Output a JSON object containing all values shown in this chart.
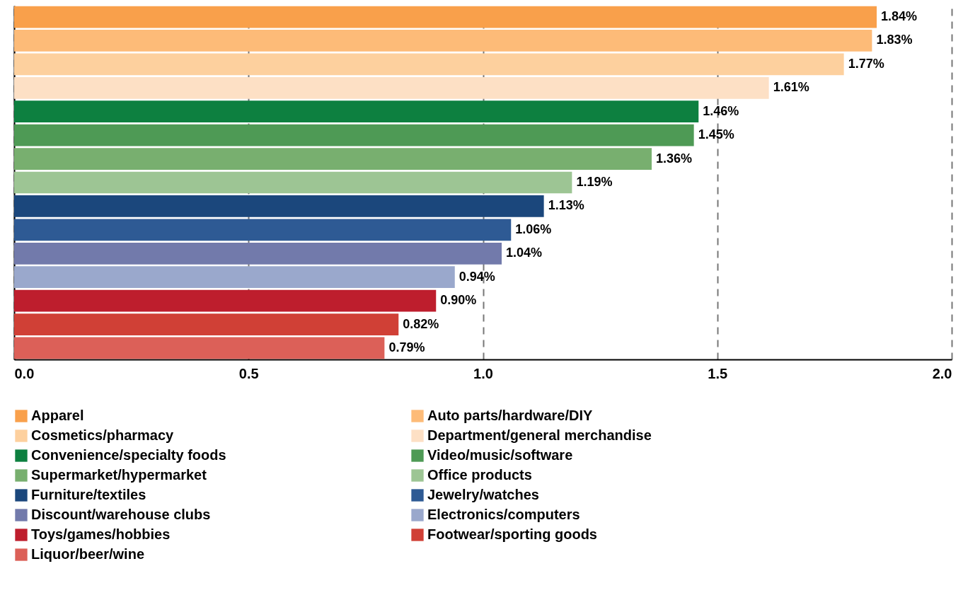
{
  "chart_data": {
    "type": "bar",
    "orientation": "horizontal",
    "categories": [
      null,
      null,
      null,
      null,
      null,
      null,
      null,
      null,
      null,
      null,
      null,
      null,
      null,
      null,
      null
    ],
    "series": [
      {
        "name": "Apparel",
        "color": "#f9a04b",
        "values": [
          1.84,
          null,
          null,
          null,
          null,
          null,
          null,
          null,
          null,
          null,
          null,
          null,
          null,
          null,
          null
        ],
        "value_labels": [
          "1.84%",
          null,
          null,
          null,
          null,
          null,
          null,
          null,
          null,
          null,
          null,
          null,
          null,
          null,
          null
        ]
      },
      {
        "name": "Auto parts/hardware/DIY",
        "color": "#fdbb78",
        "values": [
          null,
          1.83,
          null,
          null,
          null,
          null,
          null,
          null,
          null,
          null,
          null,
          null,
          null,
          null,
          null
        ],
        "value_labels": [
          null,
          "1.83%",
          null,
          null,
          null,
          null,
          null,
          null,
          null,
          null,
          null,
          null,
          null,
          null,
          null
        ]
      },
      {
        "name": "Cosmetics/pharmacy",
        "color": "#fdd09e",
        "values": [
          null,
          null,
          1.77,
          null,
          null,
          null,
          null,
          null,
          null,
          null,
          null,
          null,
          null,
          null,
          null
        ],
        "value_labels": [
          null,
          null,
          "1.77%",
          null,
          null,
          null,
          null,
          null,
          null,
          null,
          null,
          null,
          null,
          null,
          null
        ]
      },
      {
        "name": "Department/general merchandise",
        "color": "#fde0c5",
        "values": [
          null,
          null,
          null,
          1.61,
          null,
          null,
          null,
          null,
          null,
          null,
          null,
          null,
          null,
          null,
          null
        ],
        "value_labels": [
          null,
          null,
          null,
          "1.61%",
          null,
          null,
          null,
          null,
          null,
          null,
          null,
          null,
          null,
          null,
          null
        ]
      },
      {
        "name": "Convenience/specialty foods",
        "color": "#0d8040",
        "values": [
          null,
          null,
          null,
          null,
          1.46,
          null,
          null,
          null,
          null,
          null,
          null,
          null,
          null,
          null,
          null
        ],
        "value_labels": [
          null,
          null,
          null,
          null,
          "1.46%",
          null,
          null,
          null,
          null,
          null,
          null,
          null,
          null,
          null,
          null
        ]
      },
      {
        "name": "Video/music/software",
        "color": "#4e9a55",
        "values": [
          null,
          null,
          null,
          null,
          null,
          1.45,
          null,
          null,
          null,
          null,
          null,
          null,
          null,
          null,
          null
        ],
        "value_labels": [
          null,
          null,
          null,
          null,
          null,
          "1.45%",
          null,
          null,
          null,
          null,
          null,
          null,
          null,
          null,
          null
        ]
      },
      {
        "name": "Supermarket/hypermarket",
        "color": "#78af6f",
        "values": [
          null,
          null,
          null,
          null,
          null,
          null,
          1.36,
          null,
          null,
          null,
          null,
          null,
          null,
          null,
          null
        ],
        "value_labels": [
          null,
          null,
          null,
          null,
          null,
          null,
          "1.36%",
          null,
          null,
          null,
          null,
          null,
          null,
          null,
          null
        ]
      },
      {
        "name": "Office products",
        "color": "#9dc594",
        "values": [
          null,
          null,
          null,
          null,
          null,
          null,
          null,
          1.19,
          null,
          null,
          null,
          null,
          null,
          null,
          null
        ],
        "value_labels": [
          null,
          null,
          null,
          null,
          null,
          null,
          null,
          "1.19%",
          null,
          null,
          null,
          null,
          null,
          null,
          null
        ]
      },
      {
        "name": "Furniture/textiles",
        "color": "#1b477c",
        "values": [
          null,
          null,
          null,
          null,
          null,
          null,
          null,
          null,
          1.13,
          null,
          null,
          null,
          null,
          null,
          null
        ],
        "value_labels": [
          null,
          null,
          null,
          null,
          null,
          null,
          null,
          null,
          "1.13%",
          null,
          null,
          null,
          null,
          null,
          null
        ]
      },
      {
        "name": "Jewelry/watches",
        "color": "#2e5a94",
        "values": [
          null,
          null,
          null,
          null,
          null,
          null,
          null,
          null,
          null,
          1.06,
          null,
          null,
          null,
          null,
          null
        ],
        "value_labels": [
          null,
          null,
          null,
          null,
          null,
          null,
          null,
          null,
          null,
          "1.06%",
          null,
          null,
          null,
          null,
          null
        ]
      },
      {
        "name": "Discount/warehouse clubs",
        "color": "#727aab",
        "values": [
          null,
          null,
          null,
          null,
          null,
          null,
          null,
          null,
          null,
          null,
          1.04,
          null,
          null,
          null,
          null
        ],
        "value_labels": [
          null,
          null,
          null,
          null,
          null,
          null,
          null,
          null,
          null,
          null,
          "1.04%",
          null,
          null,
          null,
          null
        ]
      },
      {
        "name": "Electronics/computers",
        "color": "#9aa8cc",
        "values": [
          null,
          null,
          null,
          null,
          null,
          null,
          null,
          null,
          null,
          null,
          null,
          0.94,
          null,
          null,
          null
        ],
        "value_labels": [
          null,
          null,
          null,
          null,
          null,
          null,
          null,
          null,
          null,
          null,
          null,
          "0.94%",
          null,
          null,
          null
        ]
      },
      {
        "name": "Toys/games/hobbies",
        "color": "#be1e2d",
        "values": [
          null,
          null,
          null,
          null,
          null,
          null,
          null,
          null,
          null,
          null,
          null,
          null,
          0.9,
          null,
          null
        ],
        "value_labels": [
          null,
          null,
          null,
          null,
          null,
          null,
          null,
          null,
          null,
          null,
          null,
          null,
          "0.90%",
          null,
          null
        ]
      },
      {
        "name": "Footwear/sporting goods",
        "color": "#d04036",
        "values": [
          null,
          null,
          null,
          null,
          null,
          null,
          null,
          null,
          null,
          null,
          null,
          null,
          null,
          0.82,
          null
        ],
        "value_labels": [
          null,
          null,
          null,
          null,
          null,
          null,
          null,
          null,
          null,
          null,
          null,
          null,
          null,
          "0.82%",
          null
        ]
      },
      {
        "name": "Liquor/beer/wine",
        "color": "#dc6058",
        "values": [
          null,
          null,
          null,
          null,
          null,
          null,
          null,
          null,
          null,
          null,
          null,
          null,
          null,
          null,
          0.79
        ],
        "value_labels": [
          null,
          null,
          null,
          null,
          null,
          null,
          null,
          null,
          null,
          null,
          null,
          null,
          null,
          null,
          "0.79%"
        ]
      }
    ],
    "xlim": [
      0,
      2
    ],
    "xticks": [
      {
        "value": 0,
        "label": "0.0"
      },
      {
        "value": 0.5,
        "label": "0.5"
      },
      {
        "value": 1,
        "label": "1.0"
      },
      {
        "value": 1.5,
        "label": "1.5"
      },
      {
        "value": 2,
        "label": "2.0"
      }
    ],
    "grid": "x",
    "legend": "bottom",
    "tick_labels": "x"
  }
}
